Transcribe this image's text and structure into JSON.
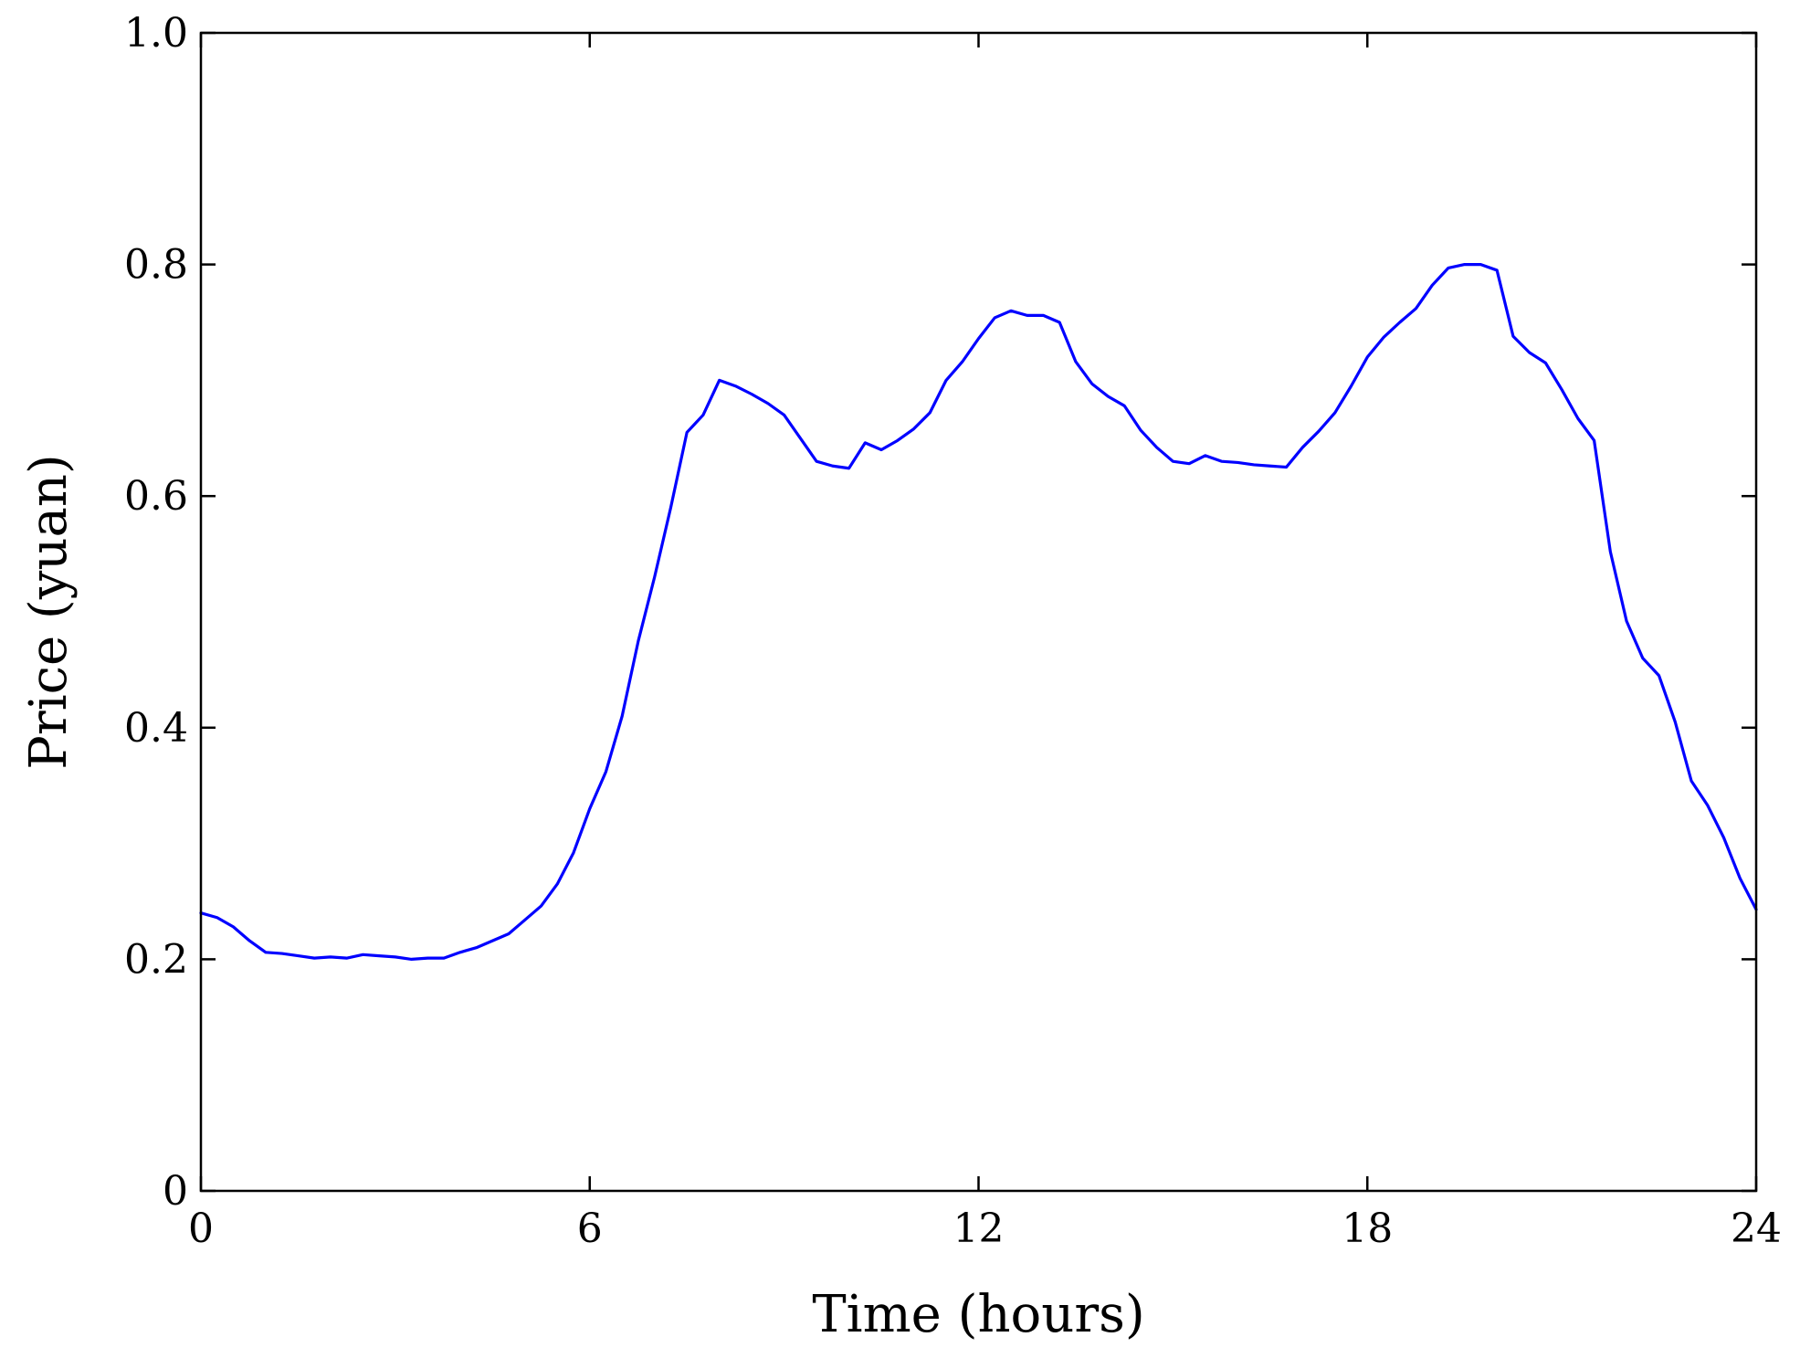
{
  "chart_data": {
    "type": "line",
    "title": "",
    "xlabel": "Time (hours)",
    "ylabel": "Price (yuan)",
    "xlim": [
      0,
      24
    ],
    "ylim": [
      0,
      1.0
    ],
    "x_ticks": [
      0,
      6,
      12,
      18,
      24
    ],
    "x_tick_labels": [
      "0",
      "6",
      "12",
      "18",
      "24"
    ],
    "y_ticks": [
      0,
      0.2,
      0.4,
      0.6,
      0.8,
      1.0
    ],
    "y_tick_labels": [
      "0",
      "0.2",
      "0.4",
      "0.6",
      "0.8",
      "1.0"
    ],
    "grid": false,
    "legend": "none",
    "series": [
      {
        "color": "#0000ff",
        "x": [
          0,
          0.25,
          0.5,
          0.75,
          1.0,
          1.25,
          1.5,
          1.75,
          2.0,
          2.25,
          2.5,
          2.75,
          3.0,
          3.25,
          3.5,
          3.75,
          4.0,
          4.25,
          4.5,
          4.75,
          5.0,
          5.25,
          5.5,
          5.75,
          6.0,
          6.25,
          6.5,
          6.75,
          7.0,
          7.25,
          7.5,
          7.75,
          8.0,
          8.25,
          8.5,
          8.75,
          9.0,
          9.25,
          9.5,
          9.75,
          10.0,
          10.25,
          10.5,
          10.75,
          11.0,
          11.25,
          11.5,
          11.75,
          12.0,
          12.25,
          12.5,
          12.75,
          13.0,
          13.25,
          13.5,
          13.75,
          14.0,
          14.25,
          14.5,
          14.75,
          15.0,
          15.25,
          15.5,
          15.75,
          16.0,
          16.25,
          16.5,
          16.75,
          17.0,
          17.25,
          17.5,
          17.75,
          18.0,
          18.25,
          18.5,
          18.75,
          19.0,
          19.25,
          19.5,
          19.75,
          20.0,
          20.25,
          20.5,
          20.75,
          21.0,
          21.25,
          21.5,
          21.75,
          22.0,
          22.25,
          22.5,
          22.75,
          23.0,
          23.25,
          23.5,
          23.75,
          24.0
        ],
        "y": [
          0.24,
          0.236,
          0.228,
          0.216,
          0.206,
          0.205,
          0.203,
          0.201,
          0.202,
          0.201,
          0.204,
          0.203,
          0.202,
          0.2,
          0.201,
          0.201,
          0.206,
          0.21,
          0.216,
          0.222,
          0.234,
          0.246,
          0.265,
          0.292,
          0.33,
          0.362,
          0.41,
          0.475,
          0.53,
          0.59,
          0.655,
          0.67,
          0.7,
          0.695,
          0.688,
          0.68,
          0.67,
          0.65,
          0.63,
          0.626,
          0.624,
          0.646,
          0.64,
          0.648,
          0.658,
          0.672,
          0.7,
          0.716,
          0.736,
          0.754,
          0.76,
          0.756,
          0.756,
          0.75,
          0.716,
          0.697,
          0.686,
          0.678,
          0.657,
          0.642,
          0.63,
          0.628,
          0.635,
          0.63,
          0.629,
          0.627,
          0.626,
          0.625,
          0.642,
          0.656,
          0.672,
          0.695,
          0.72,
          0.737,
          0.75,
          0.762,
          0.782,
          0.797,
          0.8,
          0.8,
          0.795,
          0.738,
          0.724,
          0.715,
          0.692,
          0.667,
          0.648,
          0.552,
          0.492,
          0.46,
          0.445,
          0.405,
          0.354,
          0.333,
          0.305,
          0.27,
          0.243
        ]
      }
    ]
  }
}
